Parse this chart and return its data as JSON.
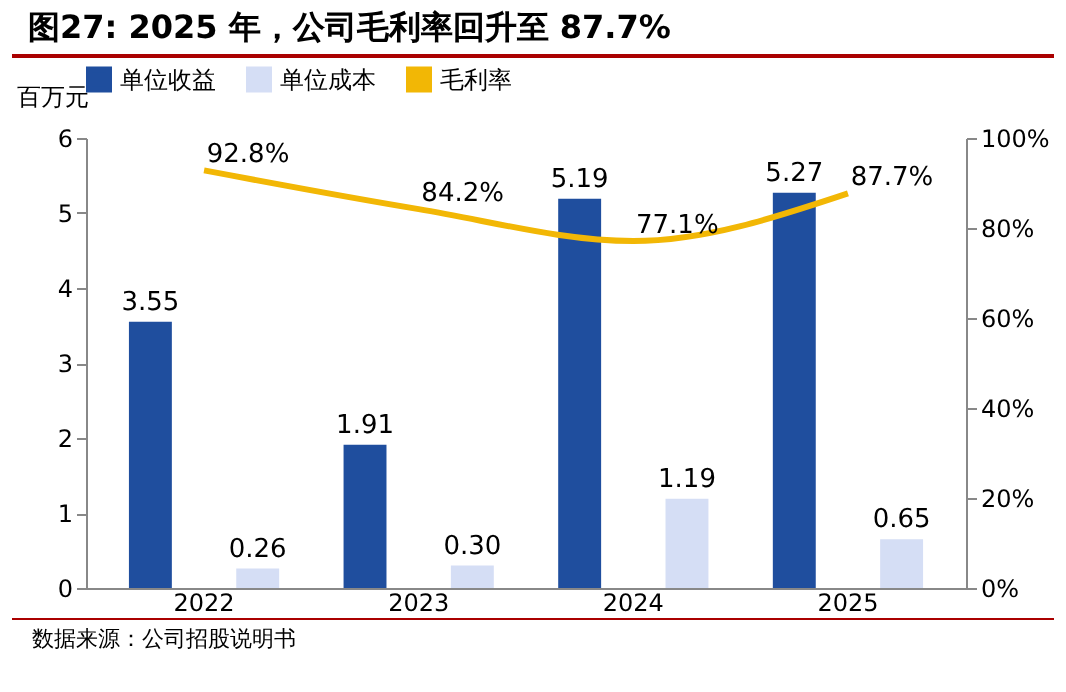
{
  "chart_data": {
    "type": "bar",
    "title": "图27: 2025 年，公司毛利率回升至 87.7%",
    "ylabel": "百万元",
    "annotations": [
      "数据来源：公司招股说明书"
    ],
    "categories": [
      "2022",
      "2023",
      "2024",
      "2025"
    ],
    "series": [
      {
        "name": "单位收益",
        "color": "#1f4e9e",
        "values": [
          3.55,
          1.91,
          5.19,
          5.27
        ],
        "value_labels": [
          "3.55",
          "1.91",
          "5.19",
          "5.27"
        ]
      },
      {
        "name": "单位成本",
        "color": "#d5def5",
        "values": [
          0.26,
          0.3,
          1.19,
          0.65
        ],
        "value_labels": [
          "0.26",
          "0.30",
          "1.19",
          "0.65"
        ]
      },
      {
        "name": "毛利率",
        "type": "line",
        "axis": "y2",
        "color": "#f2b705",
        "values": [
          92.8,
          84.2,
          77.1,
          87.7
        ],
        "value_labels": [
          "92.8%",
          "84.2%",
          "77.1%",
          "87.7%"
        ]
      }
    ],
    "ylim": [
      0,
      6
    ],
    "yticks": [
      0,
      1,
      2,
      3,
      4,
      5,
      6
    ],
    "y2lim": [
      0,
      100
    ],
    "y2ticks": [
      {
        "value": 0,
        "label": "0%"
      },
      {
        "value": 20,
        "label": "20%"
      },
      {
        "value": 40,
        "label": "40%"
      },
      {
        "value": 60,
        "label": "60%"
      },
      {
        "value": 80,
        "label": "80%"
      },
      {
        "value": 100,
        "label": "100%"
      }
    ],
    "legend": "top",
    "grid": false
  }
}
